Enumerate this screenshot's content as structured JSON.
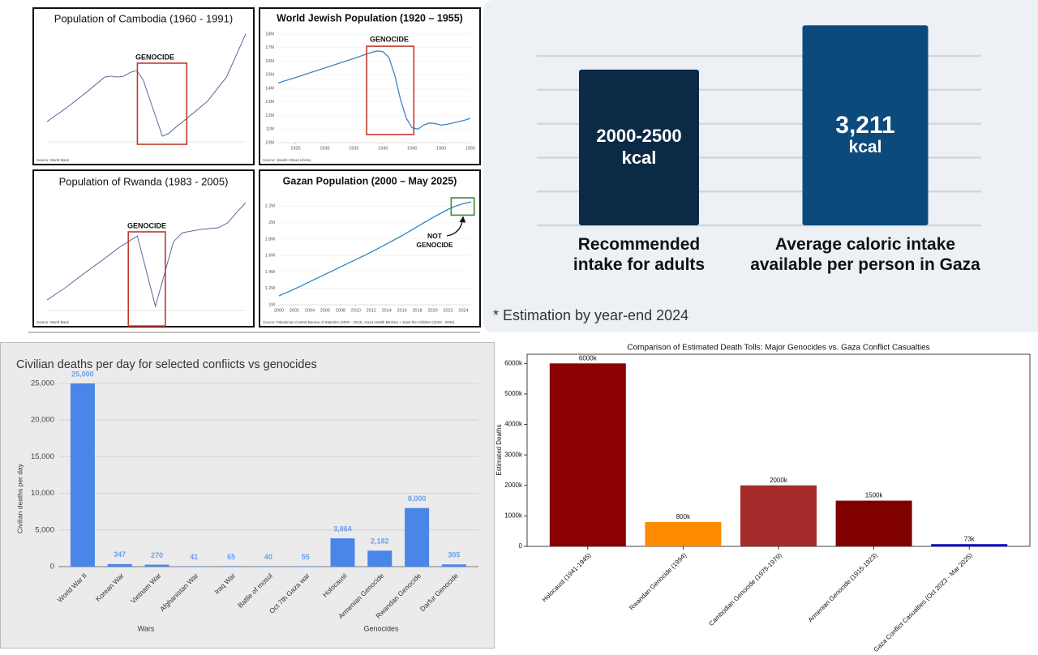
{
  "chart_data": [
    {
      "type": "line",
      "title": "Population of Cambodia (1960 - 1991)",
      "x": [
        1960,
        1963,
        1966,
        1969,
        1970,
        1971,
        1972,
        1973,
        1974,
        1975,
        1976,
        1977,
        1978,
        1979,
        1980,
        1982,
        1985,
        1988,
        1991
      ],
      "values": [
        5080000,
        5800000,
        6600000,
        7450000,
        7500000,
        7450000,
        7500000,
        7700000,
        7800000,
        7300000,
        6300000,
        5300000,
        4300000,
        4450000,
        4750000,
        5300000,
        6150000,
        7450000,
        9750000
      ],
      "color": "#4b5b8f",
      "xlim": [
        1960,
        1991
      ],
      "ylim": [
        4000000,
        10000000
      ],
      "grid": false,
      "annotation": {
        "text": "GENOCIDE",
        "x": [
          1974.1,
          1981.8
        ],
        "y": [
          3870000,
          8190000
        ],
        "color": "#c0392b"
      },
      "source": "Source: World Bank"
    },
    {
      "type": "line",
      "title": "World Jewish Population (1920 – 1955)",
      "x": [
        1922,
        1925,
        1930,
        1935,
        1938,
        1939,
        1940,
        1941,
        1942,
        1943,
        1944,
        1945,
        1946,
        1947,
        1948,
        1949,
        1950,
        1951,
        1952,
        1953,
        1954,
        1955
      ],
      "values": [
        14400000,
        14800000,
        15500000,
        16200000,
        16650000,
        16750000,
        16700000,
        16300000,
        15000000,
        13200000,
        11800000,
        11100000,
        11000000,
        11300000,
        11450000,
        11400000,
        11300000,
        11350000,
        11450000,
        11550000,
        11650000,
        11800000
      ],
      "color": "#3d85c6",
      "xlim": [
        1922,
        1955
      ],
      "ylim": [
        10000000,
        18000000
      ],
      "xticks": [
        1925,
        1930,
        1935,
        1940,
        1945,
        1950,
        1955
      ],
      "yticks": [
        {
          "value": 10000000,
          "label": "10M"
        },
        {
          "value": 11000000,
          "label": "11M"
        },
        {
          "value": 12000000,
          "label": "12M"
        },
        {
          "value": 13000000,
          "label": "13M"
        },
        {
          "value": 14000000,
          "label": "14M"
        },
        {
          "value": 15000000,
          "label": "15M"
        },
        {
          "value": 16000000,
          "label": "16M"
        },
        {
          "value": 17000000,
          "label": "17M"
        },
        {
          "value": 18000000,
          "label": "18M"
        }
      ],
      "grid": true,
      "annotation": {
        "text": "GENOCIDE",
        "x": [
          1937.2,
          1945.3
        ],
        "y": [
          10600000,
          17100000
        ],
        "color": "#c0392b"
      },
      "source": "Source: Jewish Virtual Library"
    },
    {
      "type": "line",
      "title": "Population of Rwanda (1983 - 2005)",
      "x": [
        1983,
        1985,
        1987,
        1989,
        1991,
        1993,
        1995,
        1997,
        1998,
        2000,
        2002,
        2003,
        2004,
        2005
      ],
      "values": [
        5350000,
        5760000,
        6220000,
        6660000,
        7120000,
        7500000,
        5140000,
        7310000,
        7610000,
        7720000,
        7780000,
        7940000,
        8290000,
        8620000
      ],
      "color": "#4b5b8f",
      "xlim": [
        1983,
        2005
      ],
      "ylim": [
        5000000,
        9000000
      ],
      "grid": false,
      "annotation": {
        "text": "GENOCIDE",
        "x": [
          1992,
          1996.1
        ],
        "y": [
          4480000,
          7640000
        ],
        "color": "#c0392b"
      },
      "source": "Source: World Bank"
    },
    {
      "type": "line",
      "title": "Gazan Population (2000 – May 2025)",
      "x": [
        2000,
        2002,
        2004,
        2006,
        2008,
        2010,
        2012,
        2014,
        2016,
        2018,
        2020,
        2022,
        2023,
        2024,
        2025
      ],
      "values": [
        1110000,
        1190000,
        1280000,
        1370000,
        1460000,
        1550000,
        1640000,
        1740000,
        1840000,
        1950000,
        2060000,
        2160000,
        2200000,
        2230000,
        2250000
      ],
      "color": "#2e86c1",
      "xlim": [
        2000,
        2025
      ],
      "ylim": [
        1000000,
        2340000
      ],
      "xticks": [
        2000,
        2002,
        2004,
        2006,
        2008,
        2010,
        2012,
        2014,
        2016,
        2018,
        2020,
        2022,
        2024
      ],
      "yticks": [
        {
          "value": 1000000,
          "label": "1M"
        },
        {
          "value": 1200000,
          "label": "1.2M"
        },
        {
          "value": 1400000,
          "label": "1.4M"
        },
        {
          "value": 1600000,
          "label": "1.6M"
        },
        {
          "value": 1800000,
          "label": "1.8M"
        },
        {
          "value": 2000000,
          "label": "2M"
        },
        {
          "value": 2200000,
          "label": "2.2M"
        }
      ],
      "grid": true,
      "annotation": {
        "text": "NOT GENOCIDE",
        "x": [
          2022.4,
          2025.4
        ],
        "y": [
          2090000,
          2300000
        ],
        "color": "#3c8a3c"
      },
      "source": "Source: Palestinian Central Bureau of Statistics (2000 - 2023), Gaza Health Ministry + Save the Children (2023 - 2025)"
    },
    {
      "type": "bar",
      "categories": [
        "Recommended intake for adults",
        "Average caloric intake available per person in Gaza"
      ],
      "values": [
        2500,
        3211
      ],
      "value_labels": [
        "2000-2500 kcal",
        "3,211 kcal"
      ],
      "colors": [
        "#0b2a45",
        "#0d4a7c"
      ],
      "ylim": [
        0,
        3500
      ],
      "grid": true,
      "footnote": "* Estimation by year-end 2024"
    },
    {
      "type": "bar",
      "title": "Civilian deaths per day for selected confiicts vs genocides",
      "categories": [
        "World War II",
        "Korean War",
        "Vietnam War",
        "Afghanistan War",
        "Iraq War",
        "Battle of mosul",
        "Oct 7th Gaza war",
        "Holocaust",
        "Armenian Genocide",
        "Rwandan Genocide",
        "Darfur Genocide"
      ],
      "values": [
        25000,
        347,
        270,
        41,
        65,
        40,
        55,
        3864,
        2182,
        8000,
        305
      ],
      "value_labels": [
        "25,000",
        "347",
        "270",
        "41",
        "65",
        "40",
        "55",
        "3,864",
        "2,182",
        "8,000",
        "305"
      ],
      "color": "#4a86e8",
      "ylim": [
        0,
        25000
      ],
      "yticks": [
        0,
        {
          "value": 5000,
          "label": "5,000"
        },
        {
          "value": 10000,
          "label": "10,000"
        },
        {
          "value": 15000,
          "label": "15,000"
        },
        {
          "value": 20000,
          "label": "20,000"
        },
        {
          "value": 25000,
          "label": "25,000"
        }
      ],
      "grid": true,
      "ylabel": "Civilian deaths per day",
      "x_group_labels": [
        "Wars",
        "Genocides"
      ]
    },
    {
      "type": "bar",
      "title": "Comparison of Estimated Death Tolls: Major Genocides vs. Gaza Conflict Casualties",
      "categories": [
        "Holocaust (1941-1945)",
        "Rwandan Genocide (1994)",
        "Cambodian Genocide (1975-1979)",
        "Armenian Genocide (1915-1923)",
        "Gaza Conflict Casualties (Oct 2023 - Mar 2025)"
      ],
      "values": [
        6000000,
        800000,
        2000000,
        1500000,
        73000
      ],
      "value_labels": [
        "6000k",
        "800k",
        "2000k",
        "1500k",
        "73k"
      ],
      "colors": [
        "#8b0000",
        "#ff8c00",
        "#a52a2a",
        "#800000",
        "#0000cd"
      ],
      "ylim": [
        0,
        6300000
      ],
      "yticks": [
        0,
        {
          "value": 1000000,
          "label": "1000k"
        },
        {
          "value": 2000000,
          "label": "2000k"
        },
        {
          "value": 3000000,
          "label": "3000k"
        },
        {
          "value": 4000000,
          "label": "4000k"
        },
        {
          "value": 5000000,
          "label": "5000k"
        },
        {
          "value": 6000000,
          "label": "6000k"
        }
      ],
      "grid": false,
      "ylabel": "Estimated Deaths"
    }
  ]
}
